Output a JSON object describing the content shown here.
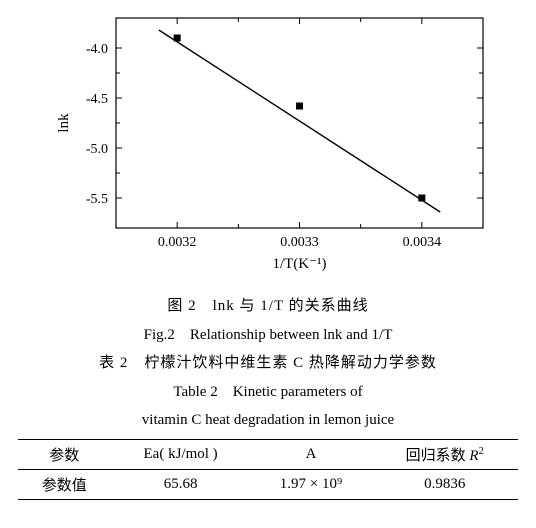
{
  "chart": {
    "type": "scatter-with-fit",
    "xlabel": "1/T(K⁻¹)",
    "ylabel": "lnk",
    "xlabel_fontsize": 15,
    "ylabel_fontsize": 15,
    "tick_fontsize": 14,
    "xlim": [
      0.00315,
      0.00345
    ],
    "ylim": [
      -5.8,
      -3.7
    ],
    "xticks": [
      0.0032,
      0.0033,
      0.0034
    ],
    "xtick_labels": [
      "0.0032",
      "0.0033",
      "0.0034"
    ],
    "yticks": [
      -4.0,
      -4.5,
      -5.0,
      -5.5
    ],
    "ytick_labels": [
      "-4.0",
      "-4.5",
      "-5.0",
      "-5.5"
    ],
    "points": [
      {
        "x": 0.0032,
        "y": -3.9
      },
      {
        "x": 0.0033,
        "y": -4.58
      },
      {
        "x": 0.0034,
        "y": -5.5
      }
    ],
    "fit_line": {
      "x1": 0.003185,
      "y1": -3.82,
      "x2": 0.003415,
      "y2": -5.64
    },
    "marker_size": 7,
    "marker_color": "#000000",
    "line_color": "#000000",
    "line_width": 1.4,
    "axis_color": "#000000",
    "axis_width": 1.2,
    "tick_len_major": 6,
    "tick_len_minor": 4,
    "background_color": "#ffffff"
  },
  "captions": {
    "fig_num_cn": "图 2　lnk 与 1/T 的关系曲线",
    "fig_num_en": "Fig.2　Relationship between lnk and 1/T",
    "tab_num_cn": "表 2　柠檬汁饮料中维生素 C 热降解动力学参数",
    "tab_num_en1": "Table 2　Kinetic parameters of",
    "tab_num_en2": "vitamin C heat degradation in lemon juice"
  },
  "table": {
    "columns": [
      "参数",
      "Ea( kJ/mol )",
      "A",
      "回归系数 R²"
    ],
    "row_label": "参数值",
    "values": [
      "65.68",
      "1.97 × 10⁹",
      "0.9836"
    ]
  }
}
